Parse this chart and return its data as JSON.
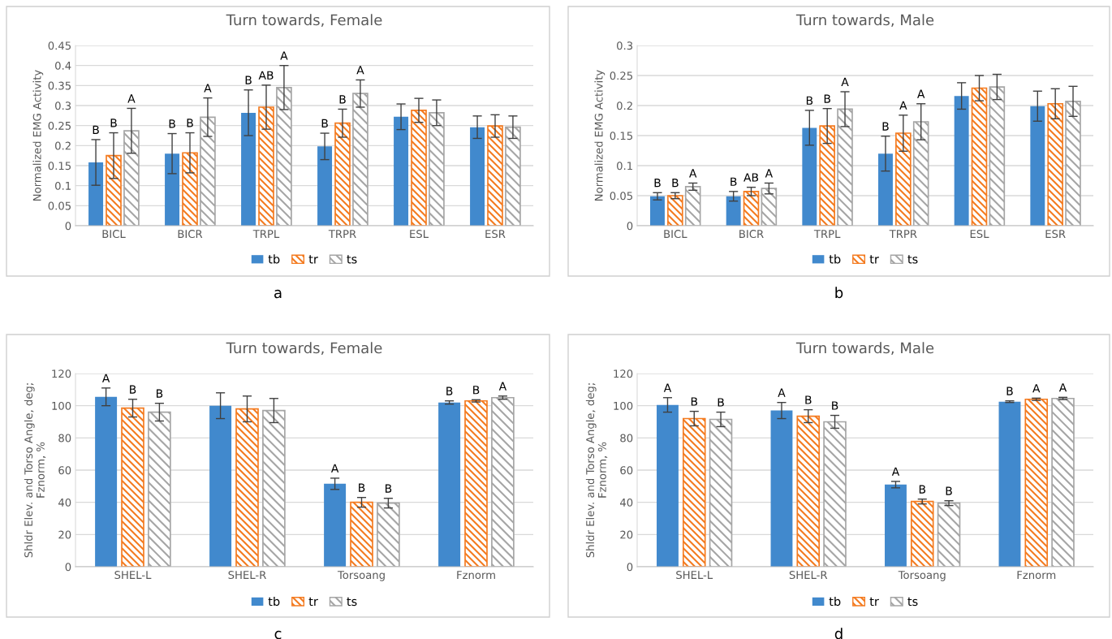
{
  "chart_data": [
    {
      "type": "bar",
      "title": "Turn towards, Female",
      "ylabel": "Normalized EMG Activity",
      "categories": [
        "BICL",
        "BICR",
        "TRPL",
        "TRPR",
        "ESL",
        "ESR"
      ],
      "ylim": [
        0,
        0.45
      ],
      "yticks": [
        0,
        0.05,
        0.1,
        0.15,
        0.2,
        0.25,
        0.3,
        0.35,
        0.4,
        0.45
      ],
      "grid": "y",
      "legend": "bottom",
      "series": [
        {
          "name": "tb",
          "color": "#4189cd",
          "values": [
            0.158,
            0.18,
            0.282,
            0.198,
            0.272,
            0.246
          ],
          "errors": [
            0.057,
            0.05,
            0.057,
            0.033,
            0.032,
            0.028
          ],
          "value_labels": [
            "B",
            "B",
            "B",
            "B",
            null,
            null
          ]
        },
        {
          "name": "tr",
          "color": "#f47b20",
          "values": [
            0.175,
            0.182,
            0.296,
            0.256,
            0.288,
            0.249
          ],
          "errors": [
            0.057,
            0.05,
            0.055,
            0.035,
            0.03,
            0.028
          ],
          "value_labels": [
            "B",
            "B",
            "AB",
            "B",
            null,
            null
          ]
        },
        {
          "name": "ts",
          "color": "#a5a5a5",
          "values": [
            0.237,
            0.271,
            0.345,
            0.33,
            0.282,
            0.246
          ],
          "errors": [
            0.056,
            0.048,
            0.055,
            0.034,
            0.032,
            0.028
          ],
          "value_labels": [
            "A",
            "A",
            "A",
            "A",
            null,
            null
          ]
        }
      ],
      "annotations": [
        "a"
      ]
    },
    {
      "type": "bar",
      "title": "Turn towards, Male",
      "ylabel": "Normalized EMG Activity",
      "categories": [
        "BICL",
        "BICR",
        "TRPL",
        "TRPR",
        "ESL",
        "ESR"
      ],
      "ylim": [
        0,
        0.3
      ],
      "yticks": [
        0,
        0.05,
        0.1,
        0.15,
        0.2,
        0.25,
        0.3
      ],
      "grid": "y",
      "legend": "bottom",
      "series": [
        {
          "name": "tb",
          "color": "#4189cd",
          "values": [
            0.049,
            0.049,
            0.163,
            0.12,
            0.216,
            0.199
          ],
          "errors": [
            0.006,
            0.008,
            0.029,
            0.029,
            0.022,
            0.025
          ],
          "value_labels": [
            "B",
            "B",
            "B",
            "B",
            null,
            null
          ]
        },
        {
          "name": "tr",
          "color": "#f47b20",
          "values": [
            0.05,
            0.057,
            0.166,
            0.154,
            0.229,
            0.203
          ],
          "errors": [
            0.005,
            0.007,
            0.029,
            0.03,
            0.021,
            0.025
          ],
          "value_labels": [
            "B",
            "AB",
            "B",
            "A",
            null,
            null
          ]
        },
        {
          "name": "ts",
          "color": "#a5a5a5",
          "values": [
            0.065,
            0.062,
            0.194,
            0.173,
            0.231,
            0.207
          ],
          "errors": [
            0.006,
            0.009,
            0.029,
            0.03,
            0.021,
            0.025
          ],
          "value_labels": [
            "A",
            "A",
            "A",
            "A",
            null,
            null
          ]
        }
      ],
      "annotations": [
        "b"
      ]
    },
    {
      "type": "bar",
      "title": "Turn towards, Female",
      "ylabel": "Shldr Elev. and Torso Angle, deg;\nFznorm, %",
      "categories": [
        "SHEL-L",
        "SHEL-R",
        "Torsoang",
        "Fznorm"
      ],
      "ylim": [
        0,
        120
      ],
      "yticks": [
        0,
        20,
        40,
        60,
        80,
        100,
        120
      ],
      "grid": "y",
      "legend": "bottom",
      "series": [
        {
          "name": "tb",
          "color": "#4189cd",
          "values": [
            105.5,
            100,
            51.5,
            102
          ],
          "errors": [
            5.5,
            8,
            3.5,
            1
          ],
          "value_labels": [
            "A",
            null,
            "A",
            "B"
          ]
        },
        {
          "name": "tr",
          "color": "#f47b20",
          "values": [
            98.5,
            98,
            40,
            103
          ],
          "errors": [
            5.5,
            8,
            3,
            0.7
          ],
          "value_labels": [
            "B",
            null,
            "B",
            "B"
          ]
        },
        {
          "name": "ts",
          "color": "#a5a5a5",
          "values": [
            96,
            97,
            39.5,
            105
          ],
          "errors": [
            5.5,
            7.5,
            3,
            1
          ],
          "value_labels": [
            "B",
            null,
            "B",
            "A"
          ]
        }
      ],
      "annotations": [
        "c"
      ]
    },
    {
      "type": "bar",
      "title": "Turn towards, Male",
      "ylabel": "Shldr Elev. and Torso Angle, deg;\nFznorm, %",
      "categories": [
        "SHEL-L",
        "SHEL-R",
        "Torsoang",
        "Fznorm"
      ],
      "ylim": [
        0,
        120
      ],
      "yticks": [
        0,
        20,
        40,
        60,
        80,
        100,
        120
      ],
      "grid": "y",
      "legend": "bottom",
      "series": [
        {
          "name": "tb",
          "color": "#4189cd",
          "values": [
            100.5,
            97,
            51,
            102.5
          ],
          "errors": [
            4.5,
            5,
            2,
            0.5
          ],
          "value_labels": [
            "A",
            "A",
            "A",
            "B"
          ]
        },
        {
          "name": "tr",
          "color": "#f47b20",
          "values": [
            92,
            93.5,
            40.5,
            104
          ],
          "errors": [
            4.5,
            4,
            1.5,
            0.7
          ],
          "value_labels": [
            "B",
            "B",
            "B",
            "A"
          ]
        },
        {
          "name": "ts",
          "color": "#a5a5a5",
          "values": [
            91.5,
            90,
            39.5,
            104.5
          ],
          "errors": [
            4.5,
            4,
            1.5,
            0.7
          ],
          "value_labels": [
            "B",
            "B",
            "B",
            "A"
          ]
        }
      ],
      "annotations": [
        "d"
      ]
    }
  ]
}
